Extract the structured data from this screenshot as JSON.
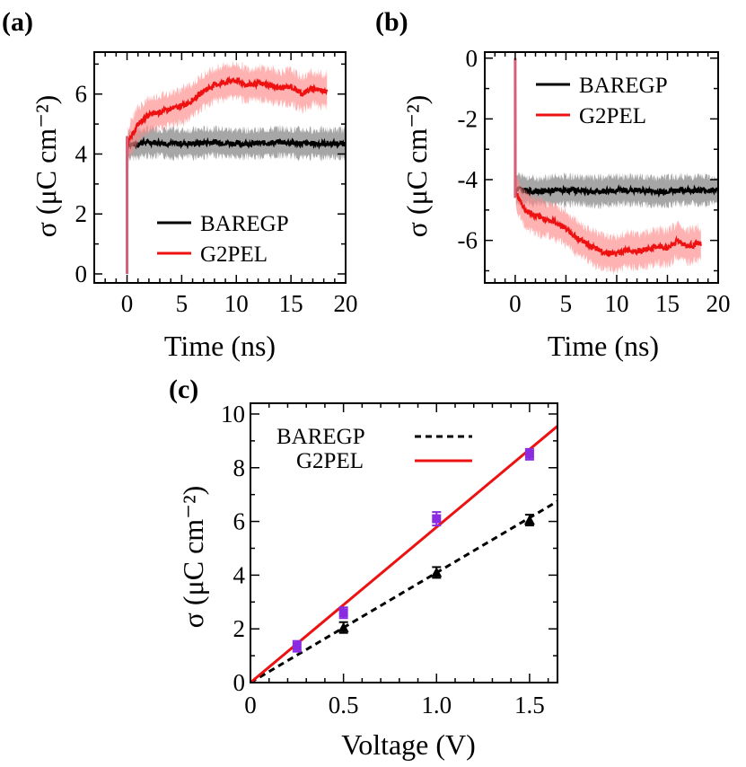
{
  "chart_data": [
    {
      "panel": "(a)",
      "type": "line",
      "xlabel": "Time (ns)",
      "ylabel": "σ (μC cm⁻²)",
      "xlim": [
        -3,
        20
      ],
      "ylim": [
        -0.3,
        7.4
      ],
      "xticks": [
        0,
        5,
        10,
        15,
        20
      ],
      "yticks": [
        0,
        2,
        4,
        6
      ],
      "legend_position": "bottom-right",
      "series": [
        {
          "name": "BAREGP",
          "color": "#000000",
          "band_color": "#888888",
          "x": [
            0,
            0.3,
            1,
            2,
            4,
            6,
            8,
            10,
            12,
            14,
            16,
            18,
            20
          ],
          "y": [
            4.35,
            4.3,
            4.35,
            4.4,
            4.35,
            4.35,
            4.4,
            4.35,
            4.35,
            4.4,
            4.35,
            4.35,
            4.35
          ],
          "band": 0.45
        },
        {
          "name": "G2PEL",
          "color": "#ee1111",
          "band_color": "#ff8888",
          "x": [
            0,
            0.3,
            1,
            2,
            3,
            4,
            5,
            6,
            7,
            8,
            9,
            10,
            11,
            12,
            13,
            14,
            15,
            16,
            17,
            18,
            18.3
          ],
          "y": [
            4.3,
            4.5,
            5.0,
            5.3,
            5.4,
            5.5,
            5.6,
            5.8,
            6.1,
            6.3,
            6.4,
            6.45,
            6.3,
            6.35,
            6.3,
            6.2,
            6.25,
            6.0,
            6.2,
            6.1,
            6.15
          ],
          "band": 0.55
        }
      ]
    },
    {
      "panel": "(b)",
      "type": "line",
      "xlabel": "Time (ns)",
      "ylabel": "σ (μC cm⁻²)",
      "xlim": [
        -3,
        20
      ],
      "ylim": [
        -7.4,
        0.2
      ],
      "xticks": [
        0,
        5,
        10,
        15,
        20
      ],
      "yticks": [
        0,
        -2,
        -4,
        -6
      ],
      "legend_position": "top-right",
      "series": [
        {
          "name": "BAREGP",
          "color": "#000000",
          "band_color": "#888888",
          "x": [
            0,
            0.3,
            1,
            2,
            4,
            6,
            8,
            10,
            12,
            14,
            16,
            18,
            20
          ],
          "y": [
            -4.35,
            -4.3,
            -4.35,
            -4.4,
            -4.35,
            -4.35,
            -4.4,
            -4.35,
            -4.35,
            -4.4,
            -4.35,
            -4.35,
            -4.35
          ],
          "band": 0.45
        },
        {
          "name": "G2PEL",
          "color": "#ee1111",
          "band_color": "#ff8888",
          "x": [
            0,
            0.3,
            1,
            2,
            3,
            4,
            5,
            6,
            7,
            8,
            9,
            10,
            11,
            12,
            13,
            14,
            15,
            16,
            17,
            18,
            18.3
          ],
          "y": [
            -4.3,
            -4.6,
            -5.0,
            -5.2,
            -5.3,
            -5.4,
            -5.6,
            -5.9,
            -6.1,
            -6.3,
            -6.4,
            -6.45,
            -6.3,
            -6.35,
            -6.3,
            -6.2,
            -6.25,
            -6.0,
            -6.2,
            -6.1,
            -6.15
          ],
          "band": 0.55
        }
      ]
    },
    {
      "panel": "(c)",
      "type": "scatter",
      "xlabel": "Voltage (V)",
      "ylabel": "σ (μC cm⁻²)",
      "xlim": [
        0,
        1.65
      ],
      "ylim": [
        0,
        10.4
      ],
      "xticks": [
        "0",
        "0.5",
        "1.0",
        "1.5"
      ],
      "xtick_values": [
        0,
        0.5,
        1.0,
        1.5
      ],
      "yticks": [
        0,
        2,
        4,
        6,
        8,
        10
      ],
      "legend_position": "top-left",
      "series": [
        {
          "name": "BAREGP",
          "line_color": "#000000",
          "line_style": "dashed",
          "marker_color": "#000000",
          "marker": "triangle",
          "x": [
            0.5,
            1.0,
            1.5
          ],
          "y": [
            2.05,
            4.1,
            6.05
          ],
          "err": [
            0.2,
            0.2,
            0.2
          ],
          "fit": [
            [
              0,
              0
            ],
            [
              1.65,
              6.75
            ]
          ]
        },
        {
          "name": "G2PEL",
          "line_color": "#ee1111",
          "line_style": "solid",
          "marker_color": "#8a2be2",
          "marker": "square",
          "x": [
            0.25,
            0.5,
            1.0,
            1.5
          ],
          "y": [
            1.35,
            2.6,
            6.1,
            8.5
          ],
          "err": [
            0.2,
            0.2,
            0.25,
            0.2
          ],
          "fit": [
            [
              0,
              0
            ],
            [
              1.65,
              9.55
            ]
          ]
        }
      ]
    }
  ]
}
